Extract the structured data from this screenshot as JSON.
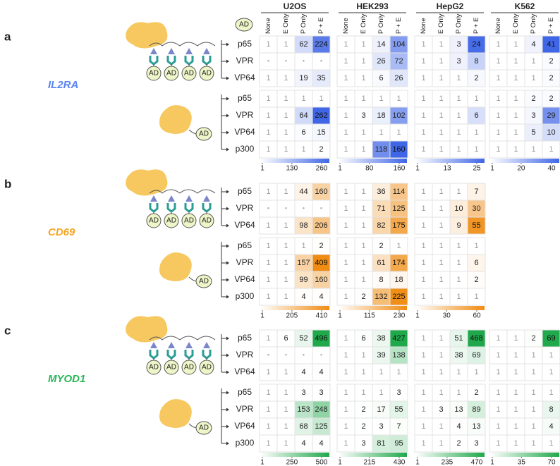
{
  "chart_data": {
    "type": "heatmap",
    "cell_lines": [
      "U2OS",
      "HEK293",
      "HepG2",
      "K562"
    ],
    "columns": [
      "None",
      "E Only",
      "P Only",
      "P + E"
    ],
    "ad_label": "AD",
    "null_label": "•",
    "panels": [
      {
        "label": "a",
        "gene": "IL2RA",
        "color": "#3f66e6",
        "gene_color": "#5b84f0",
        "rows": [
          "p65",
          "VPR",
          "VP64",
          "p65",
          "VPR",
          "VP64",
          "p300"
        ],
        "blocks": [
          {
            "values": [
              [
                1,
                1,
                62,
                224
              ],
              [
                null,
                null,
                null,
                null
              ],
              [
                1,
                1,
                19,
                35
              ],
              [
                1,
                1,
                1,
                1
              ],
              [
                1,
                1,
                64,
                262
              ],
              [
                1,
                1,
                6,
                15
              ],
              [
                1,
                1,
                1,
                2
              ]
            ],
            "ticks": [
              1,
              130,
              260
            ]
          },
          {
            "values": [
              [
                1,
                1,
                14,
                104
              ],
              [
                1,
                1,
                26,
                72
              ],
              [
                1,
                1,
                6,
                26
              ],
              [
                1,
                1,
                1,
                1
              ],
              [
                1,
                3,
                18,
                102
              ],
              [
                1,
                1,
                1,
                1
              ],
              [
                1,
                1,
                118,
                160
              ]
            ],
            "ticks": [
              1,
              80,
              160
            ]
          },
          {
            "values": [
              [
                1,
                1,
                3,
                24
              ],
              [
                1,
                1,
                3,
                8
              ],
              [
                1,
                1,
                1,
                2
              ],
              [
                1,
                1,
                1,
                1
              ],
              [
                1,
                1,
                1,
                6
              ],
              [
                1,
                1,
                1,
                1
              ],
              [
                1,
                1,
                1,
                1
              ]
            ],
            "ticks": [
              1,
              13,
              25
            ]
          },
          {
            "values": [
              [
                1,
                1,
                4,
                41
              ],
              [
                1,
                1,
                1,
                2
              ],
              [
                1,
                1,
                1,
                2
              ],
              [
                1,
                1,
                2,
                2
              ],
              [
                1,
                1,
                3,
                29
              ],
              [
                1,
                1,
                5,
                10
              ],
              [
                1,
                1,
                1,
                1
              ]
            ],
            "ticks": [
              1,
              20,
              40
            ]
          }
        ]
      },
      {
        "label": "b",
        "gene": "CD69",
        "color": "#f08c12",
        "gene_color": "#f5a623",
        "rows": [
          "p65",
          "VPR",
          "VP64",
          "p65",
          "VPR",
          "VP64",
          "p300"
        ],
        "blocks": [
          {
            "values": [
              [
                1,
                1,
                44,
                160
              ],
              [
                null,
                null,
                null,
                null
              ],
              [
                1,
                1,
                98,
                206
              ],
              [
                1,
                1,
                1,
                2
              ],
              [
                1,
                1,
                157,
                409
              ],
              [
                1,
                1,
                99,
                160
              ],
              [
                1,
                1,
                4,
                4
              ]
            ],
            "ticks": [
              1,
              205,
              410
            ]
          },
          {
            "values": [
              [
                1,
                1,
                36,
                114
              ],
              [
                1,
                1,
                71,
                125
              ],
              [
                1,
                1,
                82,
                175
              ],
              [
                1,
                1,
                2,
                1
              ],
              [
                1,
                1,
                61,
                174
              ],
              [
                1,
                1,
                8,
                18
              ],
              [
                1,
                2,
                132,
                225
              ]
            ],
            "ticks": [
              1,
              115,
              230
            ]
          },
          {
            "values": [
              [
                1,
                1,
                1,
                7
              ],
              [
                1,
                1,
                10,
                30
              ],
              [
                1,
                1,
                9,
                55
              ],
              [
                1,
                1,
                1,
                1
              ],
              [
                1,
                1,
                1,
                6
              ],
              [
                1,
                1,
                1,
                2
              ],
              [
                1,
                1,
                1,
                1
              ]
            ],
            "ticks": [
              1,
              30,
              60
            ]
          }
        ]
      },
      {
        "label": "c",
        "gene": "MYOD1",
        "color": "#1ea84a",
        "gene_color": "#2bb55a",
        "rows": [
          "p65",
          "VPR",
          "VP64",
          "p65",
          "VPR",
          "VP64",
          "p300"
        ],
        "blocks": [
          {
            "values": [
              [
                1,
                6,
                52,
                496
              ],
              [
                null,
                null,
                null,
                null
              ],
              [
                1,
                1,
                4,
                4
              ],
              [
                1,
                1,
                3,
                3
              ],
              [
                1,
                1,
                153,
                248
              ],
              [
                1,
                1,
                68,
                125
              ],
              [
                1,
                1,
                4,
                4
              ]
            ],
            "ticks": [
              1,
              250,
              500
            ]
          },
          {
            "values": [
              [
                1,
                6,
                38,
                427
              ],
              [
                1,
                1,
                39,
                138
              ],
              [
                1,
                1,
                1,
                1
              ],
              [
                1,
                1,
                1,
                3
              ],
              [
                1,
                2,
                17,
                55
              ],
              [
                1,
                2,
                3,
                7
              ],
              [
                1,
                3,
                81,
                95
              ]
            ],
            "ticks": [
              1,
              215,
              430
            ]
          },
          {
            "values": [
              [
                1,
                1,
                51,
                468
              ],
              [
                1,
                1,
                38,
                69
              ],
              [
                1,
                1,
                1,
                1
              ],
              [
                1,
                1,
                1,
                2
              ],
              [
                1,
                3,
                13,
                89
              ],
              [
                1,
                1,
                4,
                13
              ],
              [
                1,
                1,
                2,
                3
              ]
            ],
            "ticks": [
              1,
              235,
              470
            ]
          },
          {
            "values": [
              [
                1,
                1,
                2,
                69
              ],
              [
                1,
                1,
                1,
                1
              ],
              [
                1,
                1,
                1,
                1
              ],
              [
                1,
                1,
                1,
                1
              ],
              [
                1,
                1,
                1,
                8
              ],
              [
                1,
                1,
                1,
                4
              ],
              [
                1,
                1,
                1,
                1
              ]
            ],
            "ticks": [
              1,
              35,
              70
            ]
          }
        ]
      }
    ]
  }
}
